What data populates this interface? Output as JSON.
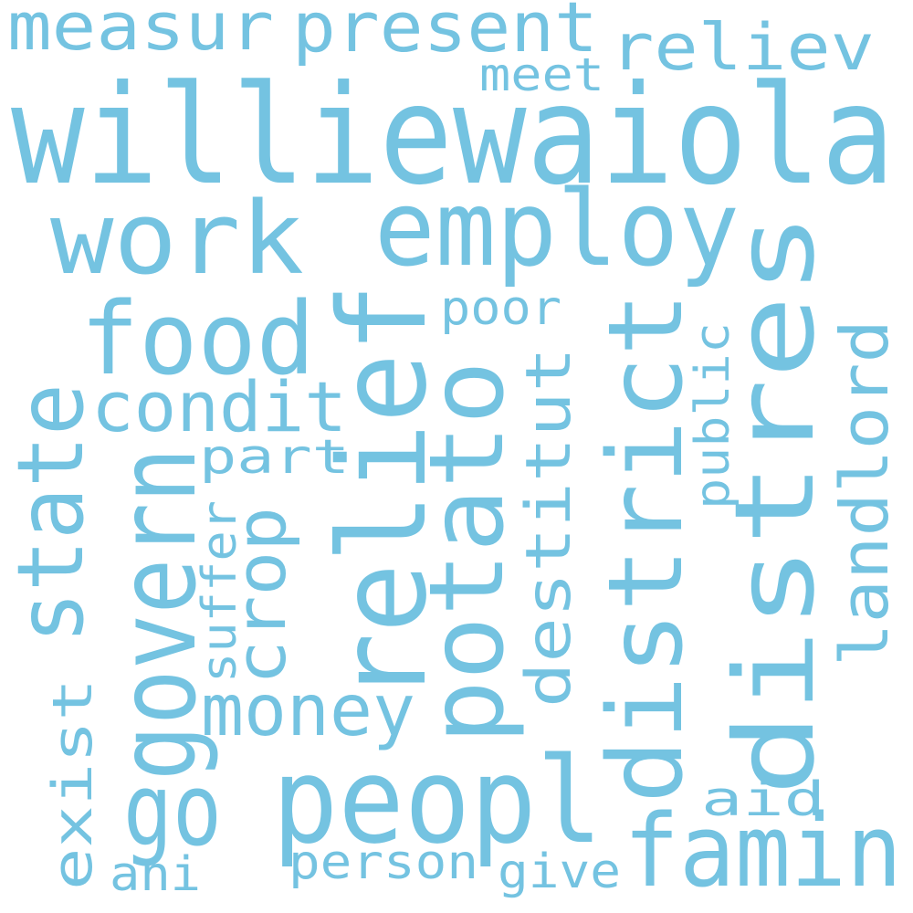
{
  "colors": {
    "word": "#74c3e1",
    "background": "#ffffff"
  },
  "words": {
    "williewaiola": "williewaiola",
    "work": "work",
    "employ": "employ",
    "measur": "measur",
    "present": "present",
    "reliev": "reliev",
    "meet": "meet",
    "food": "food",
    "relief": "relief",
    "distres": "distres",
    "district": "district",
    "potato": "potato",
    "state": "state",
    "govern": "govern",
    "condit": "condit",
    "poor": "poor",
    "public": "public",
    "landlord": "landlord",
    "destitut": "destitut",
    "part": "part",
    "crop": "crop",
    "suffer": "suffer",
    "money": "money",
    "exist": "exist",
    "go": "go",
    "peopl": "peopl",
    "famin": "famin",
    "aid": "aid",
    "person": "person",
    "give": "give",
    "ani": "ani"
  }
}
